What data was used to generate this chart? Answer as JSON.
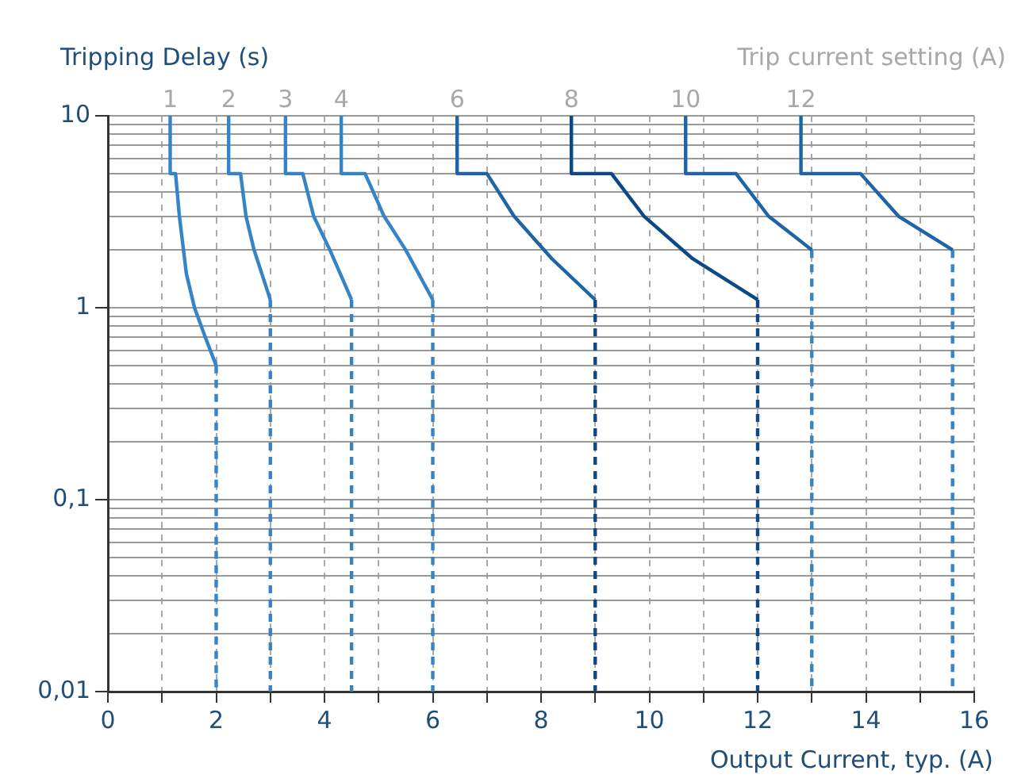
{
  "chart_data": {
    "type": "line",
    "xlabel": "Output Current, typ. (A)",
    "ylabel": "Tripping Delay (s)",
    "legend_title": "Trip current setting (A)",
    "log": "y",
    "grid": true,
    "marker": "none",
    "line_style": "solid",
    "legend": false,
    "xlim": [
      0,
      16
    ],
    "xticks": [
      0,
      {
        "value": 1,
        "label": null
      },
      2,
      {
        "value": 3,
        "label": null
      },
      4,
      {
        "value": 5,
        "label": null
      },
      6,
      {
        "value": 7,
        "label": null
      },
      8,
      {
        "value": 9,
        "label": null
      },
      10,
      {
        "value": 11,
        "label": null
      },
      12,
      {
        "value": 13,
        "label": null
      },
      14,
      {
        "value": 15,
        "label": null
      },
      16
    ],
    "ylim": [
      0.01,
      10
    ],
    "yticks": [
      {
        "value": 0.01,
        "label": "0,01"
      },
      {
        "value": 0.02,
        "label": null
      },
      {
        "value": 0.03,
        "label": null
      },
      {
        "value": 0.04,
        "label": null
      },
      {
        "value": 0.05,
        "label": null
      },
      {
        "value": 0.06,
        "label": null
      },
      {
        "value": 0.07,
        "label": null
      },
      {
        "value": 0.08,
        "label": null
      },
      {
        "value": 0.09,
        "label": null
      },
      {
        "value": 0.1,
        "label": "0,1"
      },
      {
        "value": 0.2,
        "label": null
      },
      {
        "value": 0.3,
        "label": null
      },
      {
        "value": 0.4,
        "label": null
      },
      {
        "value": 0.5,
        "label": null
      },
      {
        "value": 0.6,
        "label": null
      },
      {
        "value": 0.7,
        "label": null
      },
      {
        "value": 0.8,
        "label": null
      },
      {
        "value": 0.9,
        "label": null
      },
      1,
      {
        "value": 2,
        "label": null
      },
      {
        "value": 3,
        "label": null
      },
      {
        "value": 4,
        "label": null
      },
      {
        "value": 5,
        "label": null
      },
      {
        "value": 6,
        "label": null
      },
      {
        "value": 7,
        "label": null
      },
      {
        "value": 8,
        "label": null
      },
      {
        "value": 9,
        "label": null
      },
      10
    ],
    "series": [
      {
        "name": "1",
        "color": "#3584c8",
        "x": [
          1.15,
          1.15,
          1.25,
          1.32,
          1.45,
          1.6,
          1.8,
          2
        ],
        "values": [
          10,
          5,
          5,
          3,
          1.5,
          1,
          0.7,
          0.5
        ]
      },
      {
        "name": "2",
        "color": "#3584c8",
        "x": [
          2.23,
          2.23,
          2.45,
          2.55,
          2.7,
          3
        ],
        "values": [
          10,
          5,
          5,
          3,
          2,
          1.1
        ]
      },
      {
        "name": "3",
        "color": "#3584c8",
        "x": [
          3.28,
          3.28,
          3.6,
          3.8,
          4.1,
          4.5
        ],
        "values": [
          10,
          5,
          5,
          3,
          2,
          1.1
        ]
      },
      {
        "name": "4",
        "color": "#3584c8",
        "x": [
          4.31,
          4.31,
          4.75,
          5.1,
          5.5,
          6
        ],
        "values": [
          10,
          5,
          5,
          3,
          2,
          1.1
        ]
      },
      {
        "name": "6",
        "color": "#1f64a6",
        "x": [
          6.45,
          6.45,
          7,
          7.5,
          8.2,
          9
        ],
        "values": [
          10,
          5,
          5,
          3,
          1.8,
          1.1
        ]
      },
      {
        "name": "8",
        "color": "#0b4a86",
        "x": [
          8.56,
          8.56,
          9.3,
          9.9,
          10.8,
          12
        ],
        "values": [
          10,
          5,
          5,
          3,
          1.8,
          1.1
        ]
      },
      {
        "name": "10",
        "color": "#1f64a6",
        "x": [
          10.67,
          10.67,
          11.6,
          12.2,
          13
        ],
        "values": [
          10,
          5,
          5,
          3,
          2
        ]
      },
      {
        "name": "12",
        "color": "#1f64a6",
        "x": [
          12.8,
          12.8,
          13.9,
          14.6,
          15.6
        ],
        "values": [
          10,
          5,
          5,
          3,
          2
        ]
      },
      {
        "color": "#3584c8",
        "line_style": "dashed",
        "x": [
          2,
          2
        ],
        "values": [
          0.5,
          0.01
        ]
      },
      {
        "color": "#3584c8",
        "line_style": "dashed",
        "x": [
          3,
          3
        ],
        "values": [
          1.1,
          0.01
        ]
      },
      {
        "color": "#3584c8",
        "line_style": "dashed",
        "x": [
          4.5,
          4.5
        ],
        "values": [
          1.1,
          0.01
        ]
      },
      {
        "color": "#3584c8",
        "line_style": "dashed",
        "x": [
          6,
          6
        ],
        "values": [
          1.1,
          0.01
        ]
      },
      {
        "color": "#0b4a86",
        "line_style": "dashed",
        "x": [
          9,
          9
        ],
        "values": [
          1.1,
          0.01
        ]
      },
      {
        "color": "#0b4a86",
        "line_style": "dashed",
        "x": [
          12,
          12
        ],
        "values": [
          1.1,
          0.01
        ]
      },
      {
        "color": "#3584c8",
        "line_style": "dashed",
        "x": [
          13,
          13
        ],
        "values": [
          2,
          0.01
        ]
      },
      {
        "color": "#3584c8",
        "line_style": "dashed",
        "x": [
          15.6,
          15.6
        ],
        "values": [
          2,
          0.01
        ]
      }
    ]
  }
}
